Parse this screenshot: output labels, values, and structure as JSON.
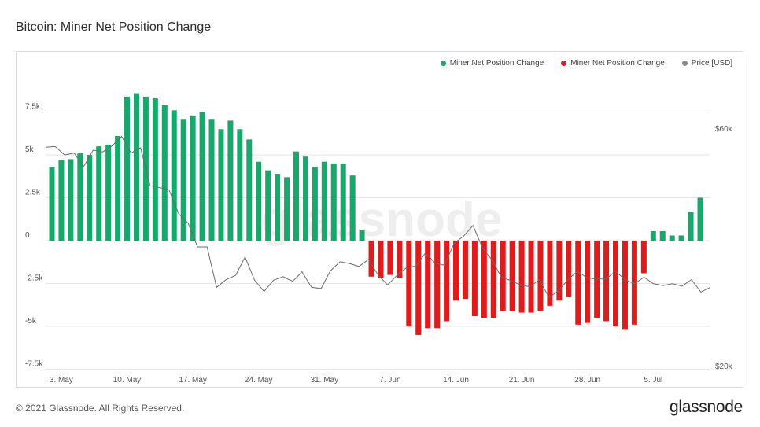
{
  "title": "Bitcoin: Miner Net Position Change",
  "footer": {
    "copyright": "© 2021 Glassnode. All Rights Reserved.",
    "logo": "glassnode"
  },
  "watermark": "glassnode",
  "colors": {
    "positive": "#17a86b",
    "negative": "#e01b1b",
    "price": "#6b6b6b",
    "grid": "#e6e6e6"
  },
  "legend": [
    {
      "label": "Miner Net Position Change",
      "color": "#17a86b"
    },
    {
      "label": "Miner Net Position Change",
      "color": "#e01b1b"
    },
    {
      "label": "Price [USD]",
      "color": "#888888"
    }
  ],
  "chart_data": {
    "type": "bar",
    "grid": true,
    "legend_position": "top-right",
    "y_left": {
      "ticks": [
        7500,
        5000,
        2500,
        0,
        -2500,
        -5000,
        -7500
      ],
      "tick_labels": [
        "7.5k",
        "5k",
        "2.5k",
        "0",
        "-2.5k",
        "-5k",
        "-7.5k"
      ],
      "ylim": [
        -7500,
        8800
      ]
    },
    "y_right": {
      "tick_labels": [
        "$60k",
        "$20k"
      ],
      "ticks": [
        60000,
        20000
      ],
      "ylim": [
        20000,
        60000
      ]
    },
    "x_tick_labels": [
      "3. May",
      "10. May",
      "17. May",
      "24. May",
      "31. May",
      "7. Jun",
      "14. Jun",
      "21. Jun",
      "28. Jun",
      "5. Jul"
    ],
    "x_tick_index": [
      1,
      8,
      15,
      22,
      29,
      36,
      43,
      50,
      57,
      64
    ],
    "series": [
      {
        "name": "Miner Net Position Change",
        "values": [
          4300,
          4700,
          4750,
          5100,
          5000,
          5500,
          5600,
          6100,
          8400,
          8600,
          8400,
          8300,
          7900,
          7600,
          7100,
          7300,
          7500,
          7100,
          6500,
          7000,
          6500,
          5900,
          4600,
          4100,
          3900,
          3700,
          5200,
          4900,
          4300,
          4600,
          4500,
          4500,
          3800,
          600,
          -2100,
          -2200,
          -2000,
          -2200,
          -5000,
          -5500,
          -5100,
          -5100,
          -4700,
          -3500,
          -3400,
          -4400,
          -4500,
          -4500,
          -4100,
          -4100,
          -4200,
          -4200,
          -4100,
          -3800,
          -3500,
          -3300,
          -4900,
          -4800,
          -4500,
          -4700,
          -5000,
          -5200,
          -4900,
          -1900,
          550,
          550,
          300,
          300,
          1700,
          2500
        ]
      },
      {
        "name": "Price [USD]",
        "values": [
          56800,
          56900,
          55500,
          55800,
          53500,
          56300,
          56000,
          57000,
          58600,
          55800,
          56700,
          50300,
          50000,
          49600,
          45600,
          44000,
          40000,
          40000,
          33200,
          34500,
          35200,
          38300,
          34400,
          32500,
          34400,
          35000,
          34200,
          35800,
          33200,
          33000,
          36000,
          37500,
          37200,
          36700,
          37900,
          35300,
          33600,
          35200,
          36500,
          36800,
          39000,
          37300,
          36900,
          40600,
          41800,
          43600,
          39800,
          37800,
          34900,
          34300,
          33600,
          33300,
          34500,
          31500,
          32600,
          34500,
          35900,
          34800,
          34600,
          34600,
          35900,
          34500,
          33800,
          34900,
          33800,
          33500,
          33800,
          33400,
          34500,
          32400,
          33200
        ]
      }
    ]
  }
}
